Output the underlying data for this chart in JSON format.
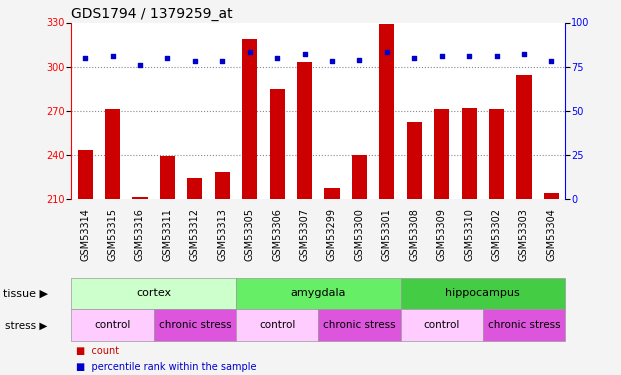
{
  "title": "GDS1794 / 1379259_at",
  "samples": [
    "GSM53314",
    "GSM53315",
    "GSM53316",
    "GSM53311",
    "GSM53312",
    "GSM53313",
    "GSM53305",
    "GSM53306",
    "GSM53307",
    "GSM53299",
    "GSM53300",
    "GSM53301",
    "GSM53308",
    "GSM53309",
    "GSM53310",
    "GSM53302",
    "GSM53303",
    "GSM53304"
  ],
  "counts": [
    243,
    271,
    211,
    239,
    224,
    228,
    319,
    285,
    303,
    217,
    240,
    329,
    262,
    271,
    272,
    271,
    294,
    214
  ],
  "percentiles": [
    80,
    81,
    76,
    80,
    78,
    78,
    83,
    80,
    82,
    78,
    79,
    83,
    80,
    81,
    81,
    81,
    82,
    78
  ],
  "ymin": 210,
  "ymax": 330,
  "yticks": [
    210,
    240,
    270,
    300,
    330
  ],
  "y2min": 0,
  "y2max": 100,
  "y2ticks": [
    0,
    25,
    50,
    75,
    100
  ],
  "bar_color": "#cc0000",
  "dot_color": "#0000cc",
  "grid_color": "#888888",
  "tissue_groups": [
    {
      "label": "cortex",
      "start": 0,
      "end": 5,
      "color": "#ccffcc"
    },
    {
      "label": "amygdala",
      "start": 6,
      "end": 11,
      "color": "#66ee66"
    },
    {
      "label": "hippocampus",
      "start": 12,
      "end": 17,
      "color": "#44cc44"
    }
  ],
  "stress_groups": [
    {
      "label": "control",
      "start": 0,
      "end": 2,
      "color": "#ffccff"
    },
    {
      "label": "chronic stress",
      "start": 3,
      "end": 5,
      "color": "#dd55dd"
    },
    {
      "label": "control",
      "start": 6,
      "end": 8,
      "color": "#ffccff"
    },
    {
      "label": "chronic stress",
      "start": 9,
      "end": 11,
      "color": "#dd55dd"
    },
    {
      "label": "control",
      "start": 12,
      "end": 14,
      "color": "#ffccff"
    },
    {
      "label": "chronic stress",
      "start": 15,
      "end": 17,
      "color": "#dd55dd"
    }
  ],
  "legend_items": [
    {
      "label": "count",
      "color": "#cc0000"
    },
    {
      "label": "percentile rank within the sample",
      "color": "#0000cc"
    }
  ],
  "fig_bg": "#f4f4f4",
  "plot_bg": "#ffffff",
  "title_fontsize": 10,
  "tick_fontsize": 7,
  "label_fontsize": 8,
  "annot_fontsize": 8,
  "legend_fontsize": 7
}
